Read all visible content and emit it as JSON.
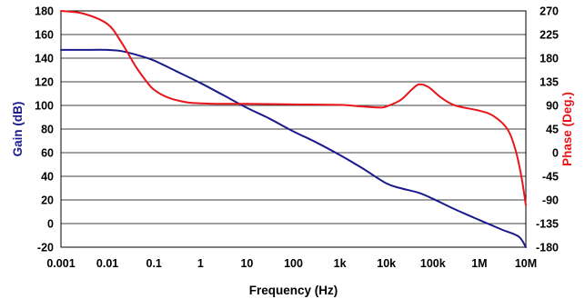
{
  "chart_data": {
    "type": "line",
    "title": "",
    "xlabel": "Frequency (Hz)",
    "ylabel": "Gain (dB)",
    "y2label": "Phase (Deg.)",
    "x_scale": "log",
    "xlim": [
      0.001,
      10000000
    ],
    "ylim": [
      -20,
      180
    ],
    "y2lim": [
      -180,
      270
    ],
    "grid": "horizontal",
    "legend": "none",
    "x_ticks": [
      {
        "value": 0.001,
        "label": "0.001"
      },
      {
        "value": 0.01,
        "label": "0.01"
      },
      {
        "value": 0.1,
        "label": "0.1"
      },
      {
        "value": 1,
        "label": "1"
      },
      {
        "value": 10,
        "label": "10"
      },
      {
        "value": 100,
        "label": "100"
      },
      {
        "value": 1000,
        "label": "1k"
      },
      {
        "value": 10000,
        "label": "10k"
      },
      {
        "value": 100000,
        "label": "100k"
      },
      {
        "value": 1000000,
        "label": "1M"
      },
      {
        "value": 10000000,
        "label": "10M"
      }
    ],
    "y_ticks": [
      {
        "value": 180,
        "label": "180"
      },
      {
        "value": 160,
        "label": "160"
      },
      {
        "value": 140,
        "label": "140"
      },
      {
        "value": 120,
        "label": "120"
      },
      {
        "value": 100,
        "label": "100"
      },
      {
        "value": 80,
        "label": "80"
      },
      {
        "value": 60,
        "label": "60"
      },
      {
        "value": 40,
        "label": "40"
      },
      {
        "value": 20,
        "label": "20"
      },
      {
        "value": 0,
        "label": "0"
      },
      {
        "value": -20,
        "label": "-20"
      }
    ],
    "y2_ticks": [
      {
        "value": 270,
        "label": "270"
      },
      {
        "value": 225,
        "label": "225"
      },
      {
        "value": 180,
        "label": "180"
      },
      {
        "value": 135,
        "label": "135"
      },
      {
        "value": 90,
        "label": "90"
      },
      {
        "value": 45,
        "label": "45"
      },
      {
        "value": 0,
        "label": "0"
      },
      {
        "value": -45,
        "label": "-45"
      },
      {
        "value": -90,
        "label": "-90"
      },
      {
        "value": -135,
        "label": "-135"
      },
      {
        "value": -180,
        "label": "-180"
      }
    ],
    "series": [
      {
        "axis": "left",
        "color": "#1a1a8c",
        "x": [
          0.001,
          0.003,
          0.01,
          0.02,
          0.05,
          0.1,
          0.3,
          1,
          3,
          10,
          30,
          100,
          300,
          1000,
          3000,
          10000,
          20000,
          50000,
          100000,
          300000,
          1000000,
          3000000,
          7000000,
          10000000
        ],
        "y": [
          147,
          147,
          147,
          146,
          142,
          138,
          129,
          119,
          109,
          98,
          89,
          78,
          69,
          58,
          47,
          34,
          30,
          26,
          21,
          12,
          3,
          -5,
          -11,
          -20
        ]
      },
      {
        "axis": "right",
        "color": "#e8151b",
        "x": [
          0.001,
          0.003,
          0.01,
          0.02,
          0.04,
          0.07,
          0.1,
          0.2,
          0.5,
          1,
          3,
          10,
          100,
          1000,
          3000,
          7000,
          10000,
          20000,
          35000,
          50000,
          80000,
          150000,
          300000,
          1000000,
          2000000,
          4000000,
          6000000,
          8000000,
          10000000
        ],
        "y": [
          270,
          265,
          245,
          210,
          165,
          135,
          120,
          105,
          96,
          94,
          93,
          93,
          92,
          91,
          88,
          86,
          88,
          100,
          120,
          130,
          125,
          105,
          90,
          80,
          70,
          45,
          5,
          -45,
          -100
        ]
      }
    ]
  }
}
